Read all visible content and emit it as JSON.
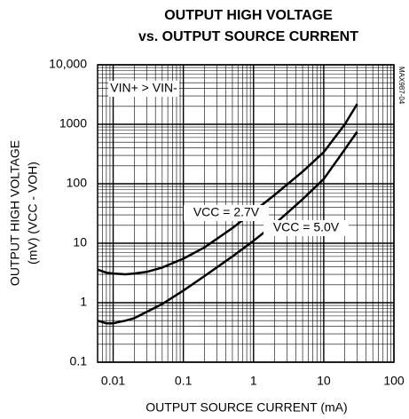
{
  "chart_data": {
    "type": "line",
    "title": [
      "OUTPUT HIGH VOLTAGE",
      "vs. OUTPUT SOURCE CURRENT"
    ],
    "xlabel": "OUTPUT SOURCE CURRENT (mA)",
    "ylabel": [
      "OUTPUT HIGH VOLTAGE",
      "(mV) (VCC - VOH)"
    ],
    "annotations": [
      "VIN+ > VIN-",
      "MAX987-04"
    ],
    "x": [
      0.006,
      0.008,
      0.01,
      0.015,
      0.02,
      0.03,
      0.05,
      0.1,
      0.2,
      0.5,
      1,
      2,
      5,
      10,
      20,
      30
    ],
    "series": [
      {
        "name": "VCC = 2.7V",
        "color": "#000000",
        "values": [
          3.6,
          3.2,
          3.1,
          3.0,
          3.1,
          3.3,
          3.9,
          5.5,
          8.5,
          18,
          34,
          65,
          160,
          340,
          1000,
          2200
        ]
      },
      {
        "name": "VCC = 5.0V",
        "color": "#000000",
        "values": [
          0.5,
          0.45,
          0.45,
          0.5,
          0.55,
          0.7,
          0.95,
          1.6,
          2.8,
          6,
          11,
          21,
          55,
          120,
          380,
          750
        ]
      }
    ],
    "xscale": "log",
    "yscale": "log",
    "xlim": [
      0.006,
      100
    ],
    "ylim": [
      0.1,
      10000
    ],
    "xticks": [
      0.01,
      0.1,
      1,
      10,
      100
    ],
    "yticks": [
      0.1,
      1,
      10,
      100,
      1000,
      {
        "value": 10000,
        "label": "10,000"
      }
    ],
    "grid": true
  }
}
